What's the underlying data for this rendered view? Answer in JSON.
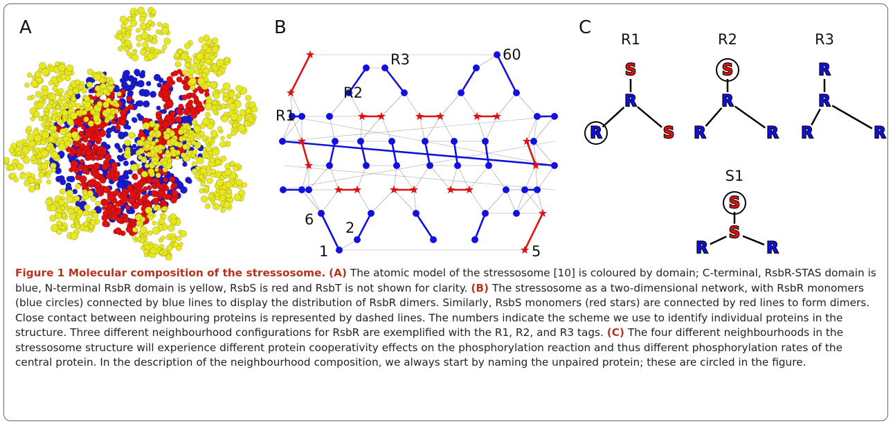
{
  "panels": {
    "a": {
      "label": "A"
    },
    "b": {
      "label": "B",
      "tags": [
        "R3",
        "R2",
        "R1",
        "60",
        "6",
        "2",
        "1",
        "5"
      ]
    },
    "c": {
      "label": "C",
      "trees": [
        {
          "title": "R1",
          "top": "S",
          "center": "R",
          "left": "R",
          "right": "S",
          "circled": "left"
        },
        {
          "title": "R2",
          "top": "S",
          "center": "R",
          "left": "R",
          "right": "R",
          "circled": "top"
        },
        {
          "title": "R3",
          "top": "R",
          "center": "R",
          "left": "R",
          "right": "R",
          "circled": "none"
        },
        {
          "title": "S1",
          "top": "S",
          "center": "S",
          "left": "R",
          "right": "R",
          "circled": "top"
        }
      ]
    }
  },
  "caption": {
    "title": "Figure 1 Molecular composition of the stressosome.",
    "parts": [
      {
        "tag": "(A)",
        "text": "The atomic model of the stressosome [10] is coloured by domain; C-terminal, RsbR-STAS domain is blue, N-terminal RsbR domain is yellow, RsbS is red and RsbT is not shown for clarity."
      },
      {
        "tag": "(B)",
        "text": "The stressosome as a two-dimensional network, with RsbR monomers (blue circles) connected by blue lines to display the distribution of RsbR dimers. Similarly, RsbS monomers (red stars) are connected by red lines to form dimers. Close contact between neighbouring proteins is represented by dashed lines. The numbers indicate the scheme we use to identify individual proteins in the structure. Three different neighbourhood configurations for RsbR are exemplified with the R1, R2, and R3 tags."
      },
      {
        "tag": "(C)",
        "text": "The four different neighbourhoods in the stressosome structure will experience different protein cooperativity effects on the phosphorylation reaction and thus different phosphorylation rates of the central protein. In the description of the neighbourhood composition, we always start by naming the unpaired protein; these are circled in the figure."
      }
    ]
  }
}
